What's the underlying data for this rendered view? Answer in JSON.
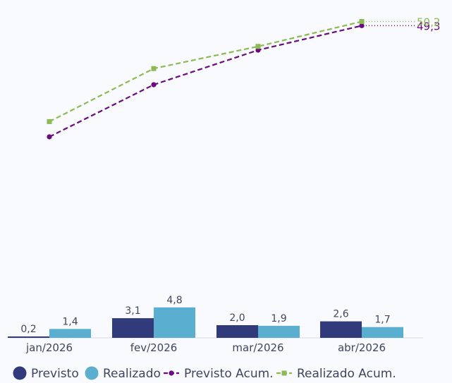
{
  "chart_data": {
    "type": "bar",
    "categories": [
      "jan/2026",
      "fev/2026",
      "mar/2026",
      "abr/2026"
    ],
    "series": [
      {
        "name": "Previsto",
        "type": "bar",
        "color": "#313b7b",
        "values": [
          0.2,
          3.1,
          2.0,
          2.6
        ],
        "labels": [
          "0,2",
          "3,1",
          "2,0",
          "2,6"
        ]
      },
      {
        "name": "Realizado",
        "type": "bar",
        "color": "#5aaecf",
        "values": [
          1.4,
          4.8,
          1.9,
          1.7
        ],
        "labels": [
          "1,4",
          "4,8",
          "1,9",
          "1,7"
        ]
      },
      {
        "name": "Previsto Acum.",
        "type": "line",
        "style": "dashed",
        "marker": "circle",
        "color": "#6b0a80",
        "values": [
          25.2,
          36.5,
          44.0,
          49.3
        ],
        "end_label": "49,3"
      },
      {
        "name": "Realizado Acum.",
        "type": "line",
        "style": "dashed",
        "marker": "square",
        "color": "#8dba52",
        "values": [
          28.5,
          40.0,
          44.8,
          50.2
        ],
        "end_label": "50,2"
      }
    ],
    "legend_position": "bottom-left",
    "grid": false
  }
}
